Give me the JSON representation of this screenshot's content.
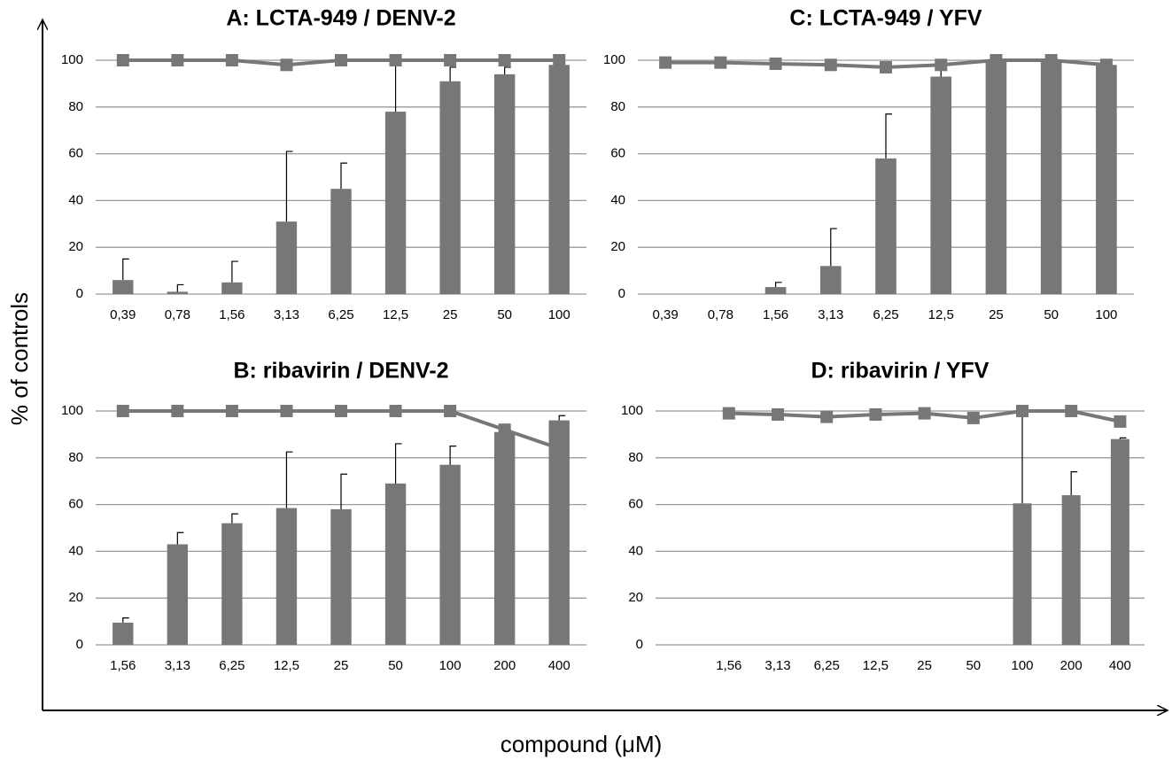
{
  "ylabel": "% of controls",
  "xlabel": "compound (μM)",
  "chart_data": [
    {
      "type": "bar",
      "title": "A: LCTA-949 / DENV-2",
      "categories": [
        "0,39",
        "0,78",
        "1,56",
        "3,13",
        "6,25",
        "12,5",
        "25",
        "50",
        "100"
      ],
      "series": [
        {
          "type": "bar",
          "color": "#777777",
          "values": [
            6,
            1,
            5,
            31,
            45,
            78,
            91,
            94,
            98
          ],
          "errors": [
            9,
            3,
            9,
            30,
            11,
            22,
            6,
            3,
            1
          ]
        },
        {
          "type": "line",
          "color": "#777777",
          "values": [
            100,
            100,
            100,
            98,
            100,
            100,
            100,
            100,
            100
          ]
        }
      ],
      "ylim": [
        0,
        100
      ],
      "yticks": [
        0,
        20,
        40,
        60,
        80,
        100
      ],
      "grid": true
    },
    {
      "type": "bar",
      "title": "C: LCTA-949 / YFV",
      "categories": [
        "0,39",
        "0,78",
        "1,56",
        "3,13",
        "6,25",
        "12,5",
        "25",
        "50",
        "100"
      ],
      "series": [
        {
          "type": "bar",
          "color": "#777777",
          "values": [
            0,
            0,
            3,
            12,
            58,
            93,
            100,
            100,
            98
          ],
          "errors": [
            null,
            null,
            2,
            16,
            19,
            3,
            0,
            0,
            0
          ]
        },
        {
          "type": "line",
          "color": "#777777",
          "values": [
            99,
            99,
            98.5,
            98,
            97,
            98,
            100,
            100,
            98
          ]
        }
      ],
      "ylim": [
        0,
        100
      ],
      "yticks": [
        0,
        20,
        40,
        60,
        80,
        100
      ],
      "grid": true
    },
    {
      "type": "bar",
      "title": "B: ribavirin / DENV-2",
      "categories": [
        "1,56",
        "3,13",
        "6,25",
        "12,5",
        "25",
        "50",
        "100",
        "200",
        "400"
      ],
      "series": [
        {
          "type": "bar",
          "color": "#777777",
          "values": [
            9.5,
            43,
            52,
            58.5,
            58,
            69,
            77,
            91,
            96
          ],
          "errors": [
            2,
            5,
            4,
            24,
            15,
            17,
            8,
            1,
            2
          ]
        },
        {
          "type": "line",
          "color": "#777777",
          "values": [
            100,
            100,
            100,
            100,
            100,
            100,
            100,
            92,
            84
          ]
        }
      ],
      "ylim": [
        0,
        100
      ],
      "yticks": [
        0,
        20,
        40,
        60,
        80,
        100
      ],
      "grid": true
    },
    {
      "type": "bar",
      "title": "D: ribavirin / YFV",
      "categories": [
        null,
        "1,56",
        "3,13",
        "6,25",
        "12,5",
        "25",
        "50",
        "100",
        "200",
        "400"
      ],
      "series": [
        {
          "type": "bar",
          "color": "#777777",
          "values": [
            null,
            0,
            0,
            0,
            0,
            0,
            0,
            60.5,
            64,
            88
          ],
          "errors": [
            null,
            null,
            null,
            null,
            null,
            null,
            null,
            40,
            10,
            0.5
          ]
        },
        {
          "type": "line",
          "color": "#777777",
          "values": [
            null,
            99,
            98.5,
            97.5,
            98.5,
            99,
            97,
            100,
            100,
            95.5
          ]
        }
      ],
      "ylim": [
        0,
        100
      ],
      "yticks": [
        0,
        20,
        40,
        60,
        80,
        100
      ],
      "grid": true
    }
  ]
}
